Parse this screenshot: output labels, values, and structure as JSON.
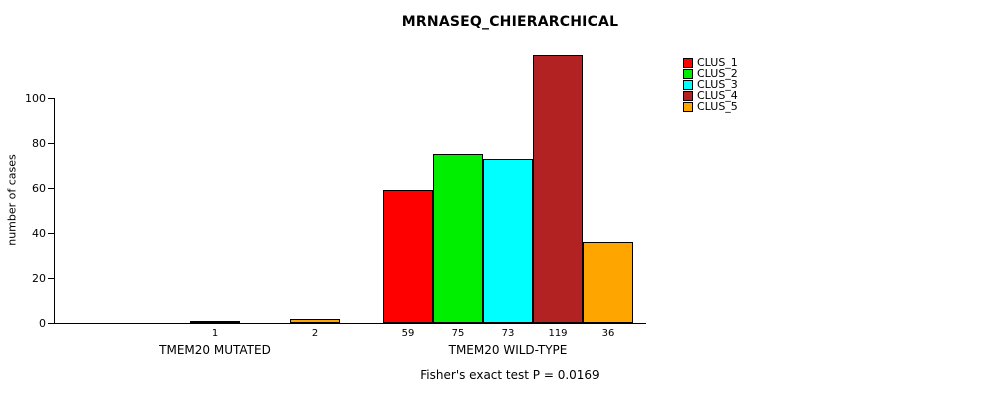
{
  "title": "MRNASEQ_CHIERARCHICAL",
  "footer": "Fisher's exact test P = 0.0169",
  "chart_data": {
    "type": "bar",
    "title": "MRNASEQ_CHIERARCHICAL",
    "ylabel": "number of cases",
    "xlabel": "",
    "ylim": [
      0,
      120
    ],
    "yticks": [
      0,
      20,
      40,
      60,
      80,
      100
    ],
    "grid": false,
    "legend_position": "top-right",
    "categories": [
      "TMEM20 MUTATED",
      "TMEM20 WILD-TYPE"
    ],
    "series": [
      {
        "name": "CLUS_1",
        "color": "#ff0000",
        "values": [
          0,
          59
        ]
      },
      {
        "name": "CLUS_2",
        "color": "#00ee00",
        "values": [
          0,
          75
        ]
      },
      {
        "name": "CLUS_3",
        "color": "#00ffff",
        "values": [
          1,
          73
        ]
      },
      {
        "name": "CLUS_4",
        "color": "#b22222",
        "values": [
          0,
          119
        ]
      },
      {
        "name": "CLUS_5",
        "color": "#ffa500",
        "values": [
          2,
          36
        ]
      }
    ],
    "bar_value_labels_shown": true,
    "annotation": "Fisher's exact test P = 0.0169"
  }
}
